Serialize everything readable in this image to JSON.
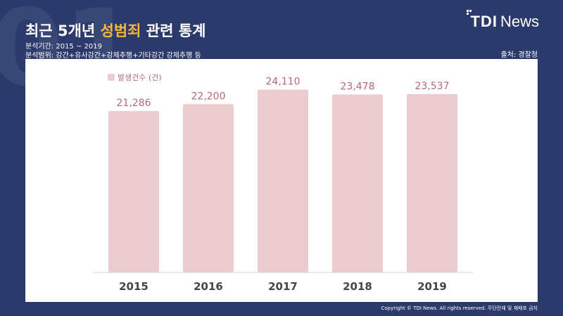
{
  "header": {
    "bg_number": "01",
    "title_prefix": "최근 5개년 ",
    "title_highlight": "성범죄",
    "title_suffix": " 관련 통계",
    "period": "분석기간: 2015 ~ 2019",
    "scope": "분석범위: 강간+유사강간+강제추행+기타강간 강제추행 등",
    "source": "출처: 경찰청"
  },
  "logo": {
    "bold": "TDI",
    "light": "News"
  },
  "footer": {
    "copyright": "Copyright © TDI News. All rights reserved. 무단전재 및 재배포 금지"
  },
  "colors": {
    "background": "#2b3a6b",
    "bar": "#ebccd1",
    "value_label": "#b26a76",
    "highlight": "#f4b63c"
  },
  "chart_data": {
    "type": "bar",
    "categories": [
      "2015",
      "2016",
      "2017",
      "2018",
      "2019"
    ],
    "series": [
      {
        "name": "발생건수 (건)",
        "values": [
          21286,
          22200,
          24110,
          23478,
          23537
        ]
      }
    ],
    "value_labels": [
      "21,286",
      "22,200",
      "24,110",
      "23,478",
      "23,537"
    ],
    "legend": {
      "label": "발생건수 (건)",
      "placement": "top-left"
    },
    "ylim": [
      0,
      26300
    ],
    "grid": false
  }
}
